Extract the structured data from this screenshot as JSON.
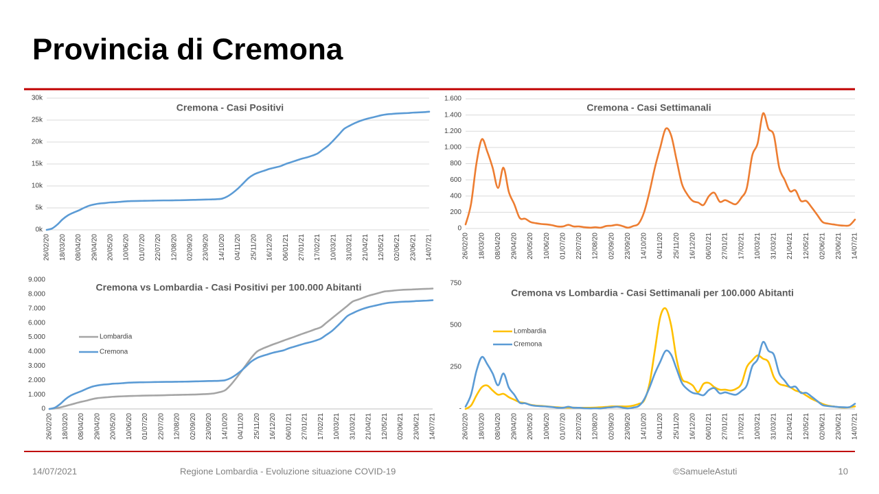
{
  "header": {
    "title": "Provincia di Cremona"
  },
  "footer": {
    "date": "14/07/2021",
    "center": "Regione Lombardia - Evoluzione situazione COVID-19",
    "author": "©SamueleAstuti",
    "page": "10"
  },
  "chart_data": [
    {
      "type": "line",
      "title": "Cremona - Casi Positivi",
      "categories": [
        "26/02/20",
        null,
        null,
        "18/03/20",
        null,
        null,
        "08/04/20",
        null,
        null,
        "29/04/20",
        null,
        null,
        "20/05/20",
        null,
        null,
        "10/06/20",
        null,
        null,
        "01/07/20",
        null,
        null,
        "22/07/20",
        null,
        null,
        "12/08/20",
        null,
        null,
        "02/09/20",
        null,
        null,
        "23/09/20",
        null,
        null,
        "14/10/20",
        null,
        null,
        "04/11/20",
        null,
        null,
        "25/11/20",
        null,
        null,
        "16/12/20",
        null,
        null,
        "06/01/21",
        null,
        null,
        "27/01/21",
        null,
        null,
        "17/02/21",
        null,
        null,
        "10/03/21",
        null,
        null,
        "31/03/21",
        null,
        null,
        "21/04/21",
        null,
        null,
        "12/05/21",
        null,
        null,
        "02/06/21",
        null,
        null,
        "23/06/21",
        null,
        null,
        "14/07/21"
      ],
      "series": [
        {
          "name": "Cremona",
          "color": "#5b9bd5",
          "values": [
            0,
            300,
            1200,
            2400,
            3300,
            3900,
            4400,
            5000,
            5500,
            5800,
            6000,
            6100,
            6250,
            6300,
            6400,
            6500,
            6550,
            6580,
            6600,
            6620,
            6650,
            6680,
            6700,
            6700,
            6720,
            6740,
            6760,
            6800,
            6830,
            6860,
            6900,
            6930,
            6980,
            7100,
            7600,
            8400,
            9400,
            10600,
            11800,
            12600,
            13100,
            13500,
            13900,
            14200,
            14500,
            15000,
            15400,
            15800,
            16200,
            16500,
            16900,
            17400,
            18300,
            19200,
            20400,
            21700,
            23000,
            23700,
            24300,
            24800,
            25200,
            25500,
            25800,
            26100,
            26300,
            26400,
            26500,
            26550,
            26600,
            26700,
            26750,
            26800,
            26900
          ]
        }
      ],
      "ylim": [
        0,
        30000
      ],
      "yticks": [
        {
          "value": 0,
          "label": "0k"
        },
        {
          "value": 5000,
          "label": "5k"
        },
        {
          "value": 10000,
          "label": "10k"
        },
        {
          "value": 15000,
          "label": "15k"
        },
        {
          "value": 20000,
          "label": "20k"
        },
        {
          "value": 25000,
          "label": "25k"
        },
        {
          "value": 30000,
          "label": "30k"
        }
      ],
      "grid": true
    },
    {
      "type": "line",
      "title": "Cremona - Casi Settimanali",
      "categories": [
        "26/02/20",
        null,
        null,
        "18/03/20",
        null,
        null,
        "08/04/20",
        null,
        null,
        "29/04/20",
        null,
        null,
        "20/05/20",
        null,
        null,
        "10/06/20",
        null,
        null,
        "01/07/20",
        null,
        null,
        "22/07/20",
        null,
        null,
        "12/08/20",
        null,
        null,
        "02/09/20",
        null,
        null,
        "23/09/20",
        null,
        null,
        "14/10/20",
        null,
        null,
        "04/11/20",
        null,
        null,
        "25/11/20",
        null,
        null,
        "16/12/20",
        null,
        null,
        "06/01/21",
        null,
        null,
        "27/01/21",
        null,
        null,
        "17/02/21",
        null,
        null,
        "10/03/21",
        null,
        null,
        "31/03/21",
        null,
        null,
        "21/04/21",
        null,
        null,
        "12/05/21",
        null,
        null,
        "02/06/21",
        null,
        null,
        "23/06/21",
        null,
        null,
        "14/07/21"
      ],
      "series": [
        {
          "name": "Cremona",
          "color": "#ed7d31",
          "values": [
            50,
            300,
            800,
            1100,
            950,
            750,
            500,
            750,
            450,
            300,
            130,
            120,
            80,
            65,
            55,
            50,
            40,
            25,
            25,
            45,
            25,
            25,
            15,
            10,
            15,
            10,
            30,
            35,
            45,
            30,
            10,
            30,
            60,
            200,
            450,
            750,
            1000,
            1230,
            1150,
            850,
            550,
            420,
            340,
            320,
            290,
            400,
            440,
            330,
            350,
            320,
            300,
            380,
            500,
            900,
            1050,
            1420,
            1230,
            1150,
            750,
            600,
            460,
            470,
            340,
            340,
            260,
            170,
            80,
            60,
            50,
            40,
            35,
            40,
            110
          ]
        }
      ],
      "ylim": [
        0,
        1600
      ],
      "yticks": [
        0,
        200,
        400,
        600,
        800,
        {
          "value": 1000,
          "label": "1.000"
        },
        {
          "value": 1200,
          "label": "1.200"
        },
        {
          "value": 1400,
          "label": "1.400"
        },
        {
          "value": 1600,
          "label": "1.600"
        }
      ],
      "grid": true
    },
    {
      "type": "line",
      "title": "Cremona vs Lombardia - Casi Positivi per 100.000 Abitanti",
      "categories": [
        "26/02/20",
        null,
        null,
        "18/03/20",
        null,
        null,
        "08/04/20",
        null,
        null,
        "29/04/20",
        null,
        null,
        "20/05/20",
        null,
        null,
        "10/06/20",
        null,
        null,
        "01/07/20",
        null,
        null,
        "22/07/20",
        null,
        null,
        "12/08/20",
        null,
        null,
        "02/09/20",
        null,
        null,
        "23/09/20",
        null,
        null,
        "14/10/20",
        null,
        null,
        "04/11/20",
        null,
        null,
        "25/11/20",
        null,
        null,
        "16/12/20",
        null,
        null,
        "06/01/21",
        null,
        null,
        "27/01/21",
        null,
        null,
        "17/02/21",
        null,
        null,
        "10/03/21",
        null,
        null,
        "31/03/21",
        null,
        null,
        "21/04/21",
        null,
        null,
        "12/05/21",
        null,
        null,
        "02/06/21",
        null,
        null,
        "23/06/21",
        null,
        null,
        "14/07/21"
      ],
      "series": [
        {
          "name": "Lombardia",
          "color": "#a5a5a5",
          "values": [
            0,
            30,
            100,
            200,
            300,
            400,
            500,
            580,
            680,
            750,
            790,
            820,
            850,
            870,
            885,
            900,
            910,
            920,
            930,
            937,
            943,
            950,
            960,
            970,
            980,
            987,
            993,
            1000,
            1015,
            1030,
            1050,
            1090,
            1170,
            1300,
            1650,
            2100,
            2600,
            3100,
            3600,
            4000,
            4200,
            4350,
            4500,
            4630,
            4770,
            4900,
            5030,
            5170,
            5300,
            5430,
            5570,
            5700,
            6000,
            6300,
            6600,
            6900,
            7200,
            7500,
            7630,
            7770,
            7900,
            8000,
            8100,
            8200,
            8230,
            8270,
            8300,
            8320,
            8330,
            8350,
            8370,
            8380,
            8400
          ]
        },
        {
          "name": "Cremona",
          "color": "#5b9bd5",
          "values": [
            0,
            85,
            338,
            677,
            931,
            1100,
            1241,
            1410,
            1551,
            1636,
            1692,
            1720,
            1763,
            1777,
            1805,
            1833,
            1847,
            1856,
            1861,
            1867,
            1875,
            1884,
            1889,
            1889,
            1895,
            1901,
            1906,
            1918,
            1926,
            1935,
            1946,
            1954,
            1968,
            2002,
            2143,
            2369,
            2651,
            2989,
            3328,
            3553,
            3694,
            3807,
            3920,
            4004,
            4089,
            4230,
            4343,
            4456,
            4568,
            4653,
            4766,
            4907,
            5161,
            5414,
            5753,
            6119,
            6486,
            6683,
            6853,
            6994,
            7106,
            7191,
            7276,
            7360,
            7417,
            7445,
            7473,
            7487,
            7501,
            7529,
            7543,
            7558,
            7586
          ]
        }
      ],
      "ylim": [
        0,
        9000
      ],
      "yticks": [
        0,
        {
          "value": 1000,
          "label": "1.000"
        },
        {
          "value": 2000,
          "label": "2.000"
        },
        {
          "value": 3000,
          "label": "3.000"
        },
        {
          "value": 4000,
          "label": "4.000"
        },
        {
          "value": 5000,
          "label": "5.000"
        },
        {
          "value": 6000,
          "label": "6.000"
        },
        {
          "value": 7000,
          "label": "7.000"
        },
        {
          "value": 8000,
          "label": "8.000"
        },
        {
          "value": 9000,
          "label": "9.000"
        }
      ],
      "grid": false,
      "legend": "left"
    },
    {
      "type": "line",
      "title": "Cremona vs Lombardia - Casi Settimanali per 100.000 Abitanti",
      "categories": [
        "26/02/20",
        null,
        null,
        "18/03/20",
        null,
        null,
        "08/04/20",
        null,
        null,
        "29/04/20",
        null,
        null,
        "20/05/20",
        null,
        null,
        "10/06/20",
        null,
        null,
        "01/07/20",
        null,
        null,
        "22/07/20",
        null,
        null,
        "12/08/20",
        null,
        null,
        "02/09/20",
        null,
        null,
        "23/09/20",
        null,
        null,
        "14/10/20",
        null,
        null,
        "04/11/20",
        null,
        null,
        "25/11/20",
        null,
        null,
        "16/12/20",
        null,
        null,
        "06/01/21",
        null,
        null,
        "27/01/21",
        null,
        null,
        "17/02/21",
        null,
        null,
        "10/03/21",
        null,
        null,
        "31/03/21",
        null,
        null,
        "21/04/21",
        null,
        null,
        "12/05/21",
        null,
        null,
        "02/06/21",
        null,
        null,
        "23/06/21",
        null,
        null,
        "14/07/21"
      ],
      "series": [
        {
          "name": "Lombardia",
          "color": "#ffc000",
          "values": [
            0,
            20,
            80,
            130,
            140,
            110,
            85,
            90,
            70,
            55,
            40,
            35,
            25,
            20,
            18,
            15,
            12,
            10,
            8,
            8,
            8,
            7,
            7,
            7,
            8,
            10,
            12,
            15,
            15,
            15,
            15,
            20,
            30,
            50,
            150,
            350,
            550,
            600,
            500,
            300,
            180,
            160,
            140,
            100,
            150,
            155,
            130,
            115,
            115,
            110,
            120,
            150,
            250,
            290,
            320,
            300,
            280,
            190,
            150,
            140,
            130,
            110,
            100,
            80,
            60,
            45,
            30,
            20,
            15,
            10,
            8,
            10,
            15
          ]
        },
        {
          "name": "Cremona",
          "color": "#5b9bd5",
          "values": [
            14,
            85,
            226,
            310,
            268,
            212,
            141,
            212,
            127,
            85,
            37,
            34,
            23,
            18,
            16,
            14,
            11,
            7,
            7,
            13,
            7,
            7,
            4,
            3,
            4,
            3,
            8,
            10,
            13,
            8,
            3,
            8,
            17,
            56,
            127,
            212,
            282,
            347,
            324,
            240,
            155,
            118,
            96,
            90,
            82,
            113,
            124,
            93,
            99,
            90,
            85,
            107,
            141,
            254,
            296,
            400,
            347,
            324,
            212,
            169,
            130,
            133,
            96,
            96,
            73,
            48,
            23,
            17,
            14,
            11,
            10,
            11,
            31
          ]
        }
      ],
      "ylim": [
        0,
        750
      ],
      "yticks": [
        {
          "value": 0,
          "label": "-"
        },
        250,
        500,
        750
      ],
      "grid": false,
      "legend": "left"
    }
  ]
}
